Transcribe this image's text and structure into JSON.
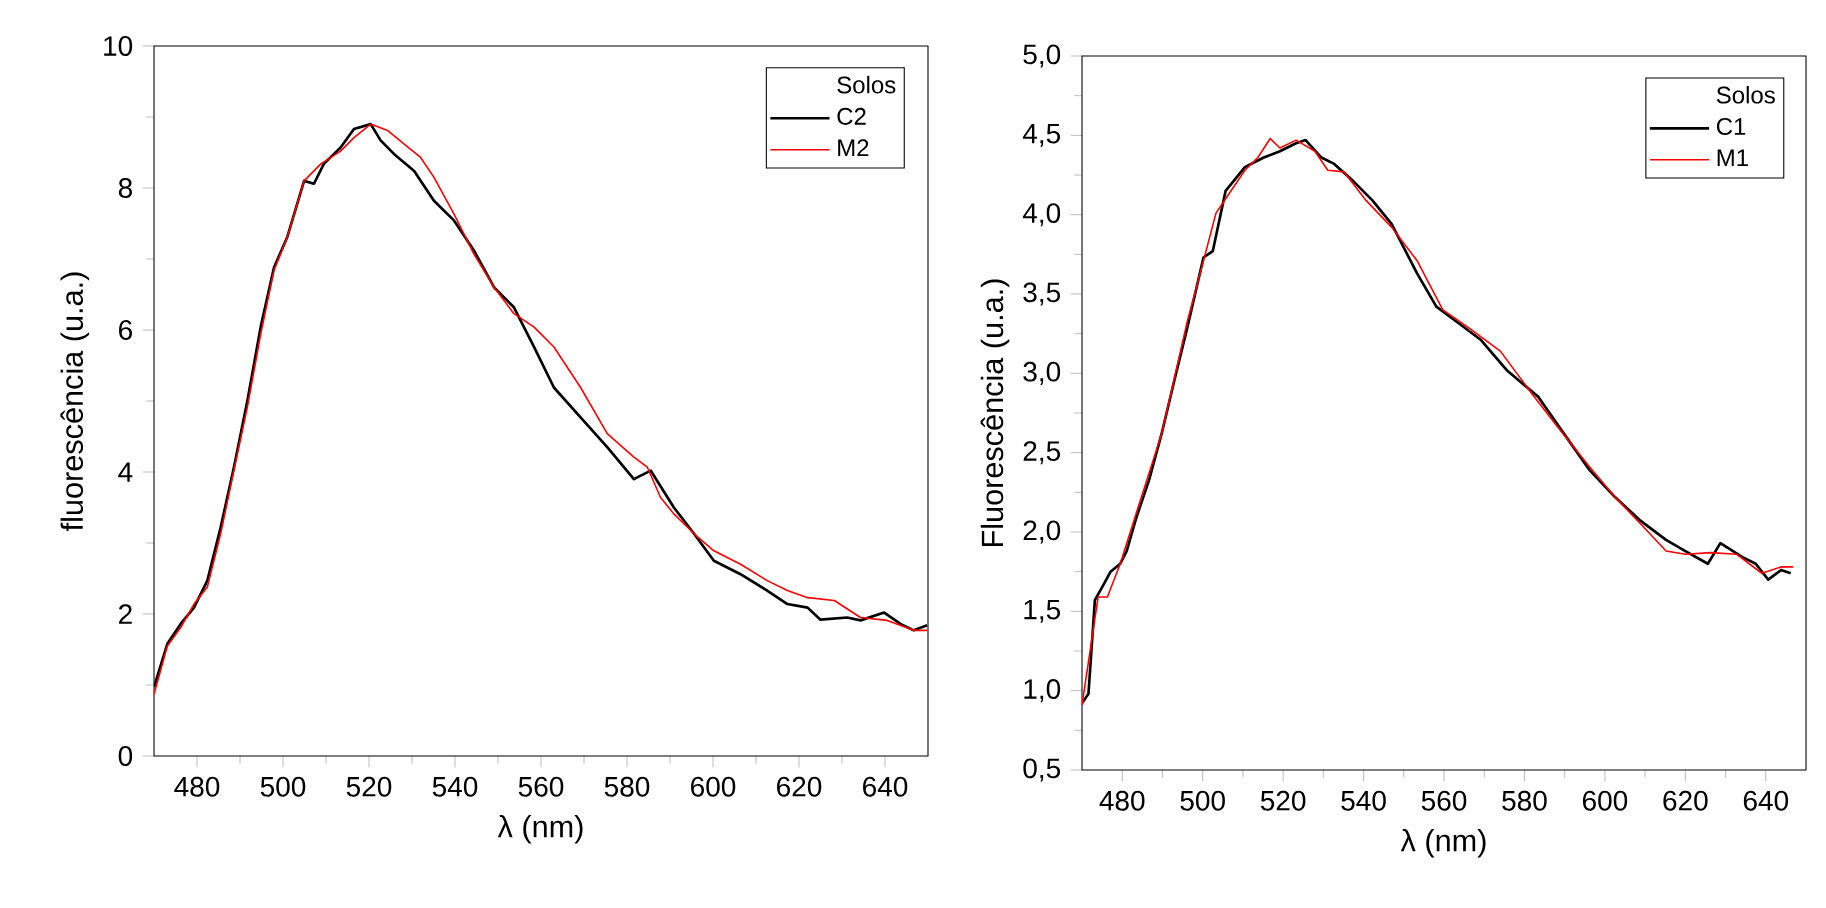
{
  "chart_data": [
    {
      "type": "line",
      "xlabel": "λ (nm)",
      "ylabel": "fluorescência (u.a.)",
      "legend_title": "Solos",
      "legend": "top right",
      "xlim": [
        470,
        650
      ],
      "ylim": [
        0,
        10
      ],
      "xticks": [
        480,
        500,
        520,
        540,
        560,
        580,
        600,
        620,
        640
      ],
      "yticks": [
        0,
        2,
        4,
        6,
        8,
        10
      ],
      "series": [
        {
          "name": "C2",
          "color": "#000000",
          "x": [
            470,
            473.1,
            476.2,
            479.3,
            482.4,
            485.5,
            488.6,
            491.7,
            494.8,
            497.9,
            501,
            504.9,
            507.2,
            509.5,
            513.4,
            516.5,
            520.4,
            522.7,
            525.8,
            530.5,
            535.1,
            539.8,
            544.4,
            549.1,
            553.7,
            558.4,
            563,
            569.2,
            575.4,
            581.6,
            585.5,
            590.9,
            595.6,
            600.2,
            606.4,
            612.6,
            617.3,
            622,
            625,
            631.2,
            634.3,
            639.8,
            643.6,
            646.7,
            649.8
          ],
          "values": [
            0.97,
            1.58,
            1.86,
            2.09,
            2.47,
            3.22,
            4.07,
            5.0,
            6.04,
            6.88,
            7.31,
            8.1,
            8.06,
            8.34,
            8.57,
            8.83,
            8.9,
            8.67,
            8.48,
            8.24,
            7.82,
            7.54,
            7.12,
            6.6,
            6.32,
            5.76,
            5.19,
            4.77,
            4.35,
            3.9,
            4.02,
            3.5,
            3.13,
            2.75,
            2.56,
            2.33,
            2.14,
            2.09,
            1.92,
            1.95,
            1.91,
            2.02,
            1.86,
            1.77,
            1.84
          ]
        },
        {
          "name": "M2",
          "color": "#ff0000",
          "x": [
            470,
            473.1,
            476.2,
            479.3,
            482.4,
            485.5,
            488.6,
            491.7,
            494.8,
            497.9,
            501,
            504.9,
            508.8,
            513.4,
            516.5,
            520.4,
            524.3,
            528.1,
            532,
            535.1,
            539.8,
            544.4,
            549.1,
            553.7,
            558.4,
            563,
            569.2,
            575.4,
            581.6,
            584.7,
            587.8,
            590.9,
            595.6,
            600.2,
            606.4,
            612.6,
            617.3,
            622,
            628.2,
            634.3,
            640.5,
            646.7,
            649.8
          ],
          "values": [
            0.87,
            1.55,
            1.81,
            2.14,
            2.38,
            3.13,
            4.03,
            4.91,
            5.94,
            6.84,
            7.31,
            8.1,
            8.34,
            8.52,
            8.71,
            8.9,
            8.81,
            8.62,
            8.43,
            8.15,
            7.63,
            7.07,
            6.6,
            6.23,
            6.04,
            5.76,
            5.19,
            4.54,
            4.21,
            4.07,
            3.64,
            3.41,
            3.13,
            2.89,
            2.7,
            2.47,
            2.33,
            2.23,
            2.19,
            1.95,
            1.91,
            1.77,
            1.77
          ]
        }
      ]
    },
    {
      "type": "line",
      "xlabel": "λ (nm)",
      "ylabel": "Fluorescência (u.a.)",
      "legend_title": "Solos",
      "legend": "top right",
      "xlim": [
        470,
        650
      ],
      "ylim": [
        0.5,
        5.0
      ],
      "xticks": [
        480,
        500,
        520,
        540,
        560,
        580,
        600,
        620,
        640
      ],
      "yticks": [
        {
          "value": 0.5,
          "label": "0,5"
        },
        {
          "value": 1.0,
          "label": "1,0"
        },
        {
          "value": 1.5,
          "label": "1,5"
        },
        {
          "value": 2.0,
          "label": "2,0"
        },
        {
          "value": 2.5,
          "label": "2,5"
        },
        {
          "value": 3.0,
          "label": "3,0"
        },
        {
          "value": 3.5,
          "label": "3,5"
        },
        {
          "value": 4.0,
          "label": "4,0"
        },
        {
          "value": 4.5,
          "label": "4,5"
        },
        {
          "value": 5.0,
          "label": "5,0"
        }
      ],
      "series": [
        {
          "name": "C1",
          "color": "#000000",
          "x": [
            470,
            471.6,
            473.2,
            475.6,
            477.1,
            479.5,
            481.1,
            483.5,
            486.7,
            489.8,
            493,
            496.2,
            500.2,
            502.5,
            505.7,
            510.5,
            515.2,
            519.2,
            523.2,
            525.6,
            529.5,
            532.7,
            537.5,
            542.2,
            547,
            553.3,
            558.1,
            562.9,
            569.2,
            575.6,
            583.5,
            589.8,
            596.2,
            602.5,
            608.9,
            615.2,
            620,
            625.6,
            628.7,
            634.3,
            637.5,
            640.6,
            643.8,
            646.2
          ],
          "values": [
            0.92,
            0.98,
            1.57,
            1.68,
            1.75,
            1.8,
            1.88,
            2.09,
            2.33,
            2.62,
            2.96,
            3.29,
            3.73,
            3.77,
            4.15,
            4.3,
            4.36,
            4.4,
            4.45,
            4.47,
            4.36,
            4.32,
            4.21,
            4.09,
            3.94,
            3.63,
            3.42,
            3.33,
            3.21,
            3.02,
            2.85,
            2.62,
            2.39,
            2.22,
            2.07,
            1.95,
            1.88,
            1.8,
            1.93,
            1.84,
            1.8,
            1.7,
            1.76,
            1.74
          ]
        },
        {
          "name": "M1",
          "color": "#ff0000",
          "x": [
            470,
            474,
            476.3,
            479.5,
            483.5,
            489.8,
            496.2,
            500.2,
            503.3,
            506.5,
            510.5,
            513.7,
            516.8,
            519.2,
            523.2,
            527.9,
            531.1,
            535.1,
            540.6,
            547,
            553.3,
            559.7,
            566,
            574,
            581.9,
            588.3,
            596.2,
            602.5,
            608.9,
            615.2,
            620,
            626.3,
            632.7,
            639,
            643.8,
            646.8
          ],
          "values": [
            0.91,
            1.59,
            1.59,
            1.8,
            2.12,
            2.62,
            3.33,
            3.71,
            4.01,
            4.13,
            4.28,
            4.36,
            4.48,
            4.42,
            4.47,
            4.4,
            4.28,
            4.27,
            4.09,
            3.92,
            3.71,
            3.4,
            3.29,
            3.14,
            2.87,
            2.66,
            2.41,
            2.22,
            2.05,
            1.88,
            1.86,
            1.87,
            1.86,
            1.74,
            1.78,
            1.78
          ]
        }
      ]
    }
  ]
}
